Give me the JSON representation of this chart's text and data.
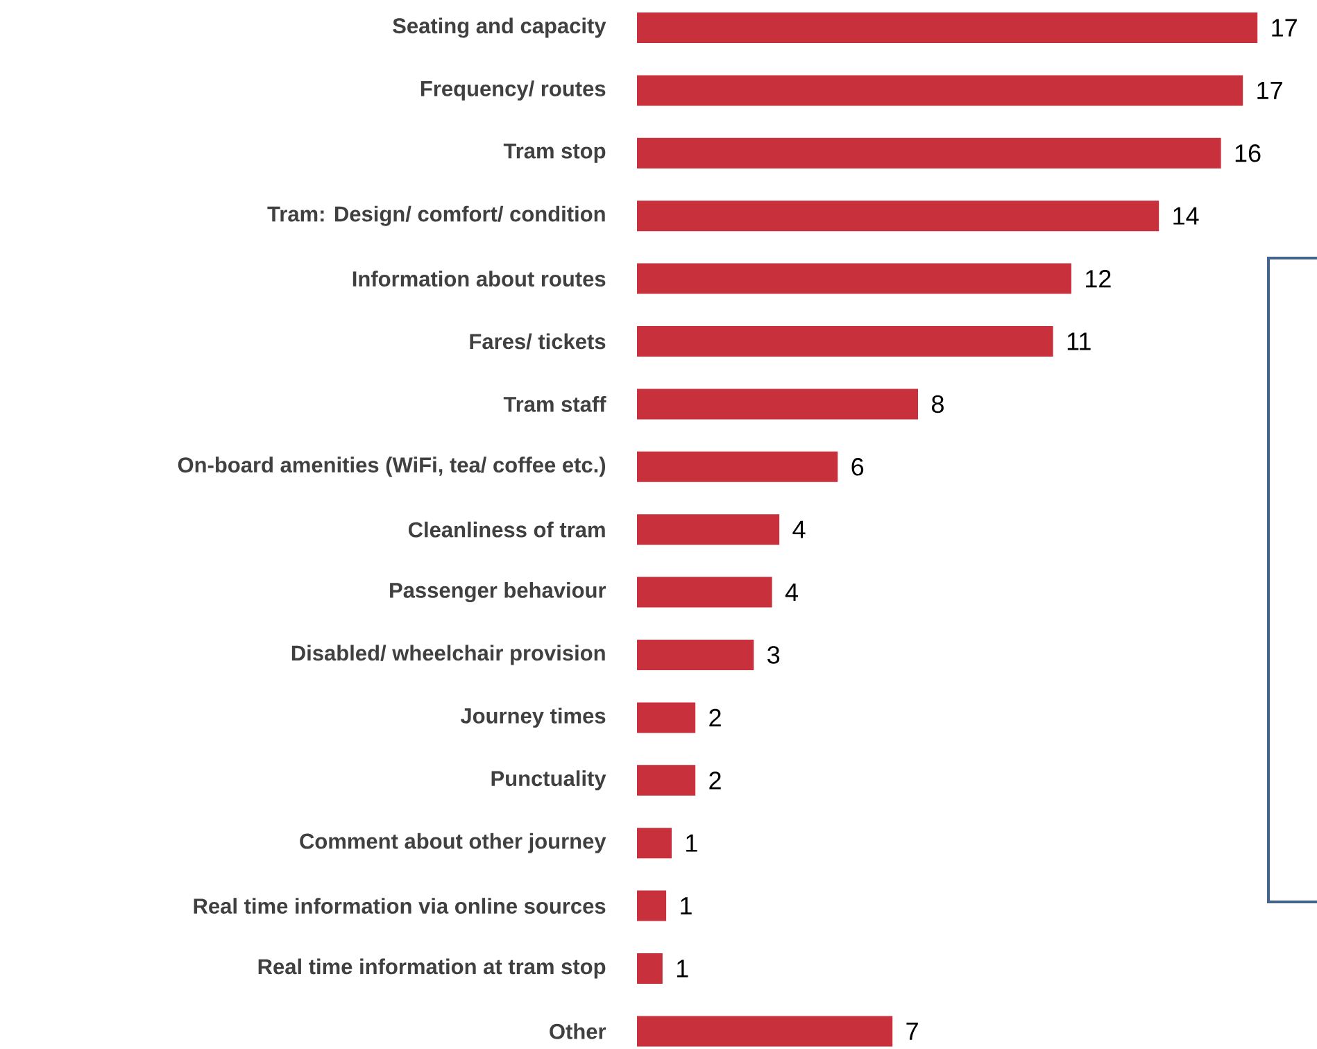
{
  "chart_data": {
    "type": "bar",
    "orientation": "horizontal",
    "color": "#c8303c",
    "categories": [
      "Seating and capacity",
      "Frequency/ routes",
      "Tram stop",
      "Tram: Design/ comfort/ condition",
      "Information about routes",
      "Fares/ tickets",
      "Tram staff",
      "On-board amenities (WiFi, tea/ coffee etc.)",
      "Cleanliness of tram",
      "Passenger behaviour",
      "Disabled/ wheelchair provision",
      "Journey times",
      "Punctuality",
      "Comment about other journey",
      "Real time information via online sources",
      "Real time information at tram stop",
      "Other"
    ],
    "values": [
      17.0,
      16.6,
      16.0,
      14.3,
      11.9,
      11.4,
      7.7,
      5.5,
      3.9,
      3.7,
      3.2,
      1.6,
      1.6,
      0.95,
      0.8,
      0.7,
      7.0
    ],
    "value_labels": [
      "17",
      "17",
      "16",
      "14",
      "12",
      "11",
      "8",
      "6",
      "4",
      "4",
      "3",
      "2",
      "2",
      "1",
      "1",
      "1",
      "7"
    ]
  }
}
